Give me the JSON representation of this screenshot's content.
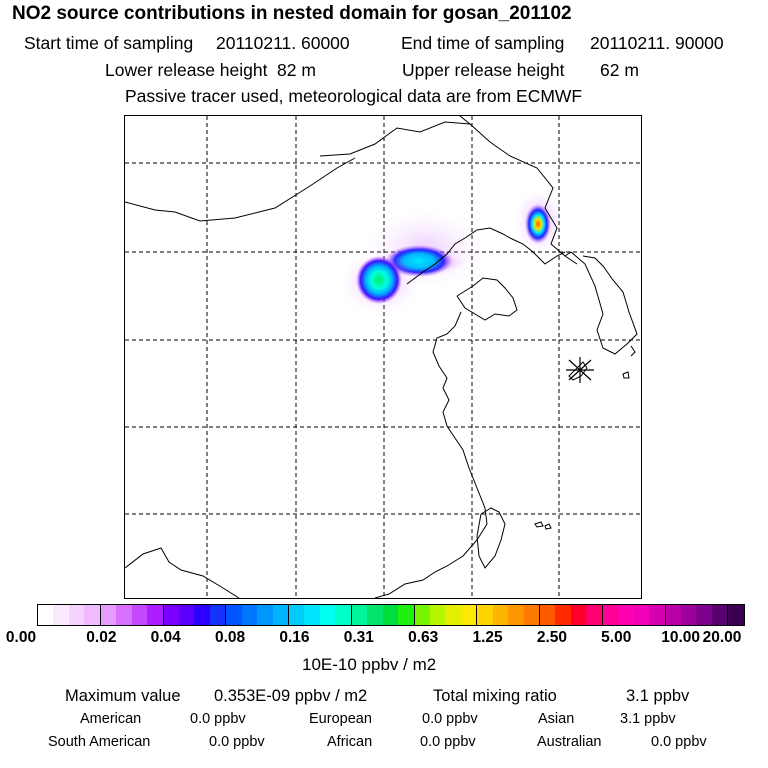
{
  "header": {
    "title": "NO2 source contributions in nested domain for gosan_201102",
    "start_label": "Start time of sampling",
    "start_value": "20110211. 60000",
    "end_label": "End time of sampling",
    "end_value": "20110211. 90000",
    "lower_label": "Lower release height",
    "lower_value": "82 m",
    "upper_label": "Upper release height",
    "upper_value": "62 m",
    "note": "Passive tracer used, meteorological data are from ECMWF"
  },
  "map": {
    "receptor_marker": "asterisk-receptor-icon",
    "colors": {
      "coast": "#000000",
      "grid": "#000000"
    }
  },
  "colorbar": {
    "ticks": [
      "0.00",
      "0.02",
      "0.04",
      "0.08",
      "0.16",
      "0.31",
      "0.63",
      "1.25",
      "2.50",
      "5.00",
      "10.00",
      "20.00"
    ],
    "colors": [
      "#ffffff",
      "#fbe9ff",
      "#f6d3ff",
      "#efbaff",
      "#e69bff",
      "#d870ff",
      "#c548ff",
      "#aa1eff",
      "#7c00ff",
      "#5a00ff",
      "#2b00ff",
      "#1433ff",
      "#0055ff",
      "#0077ff",
      "#0096ff",
      "#00b4ff",
      "#00ccff",
      "#00e4ff",
      "#00ffee",
      "#00ffc8",
      "#00f59a",
      "#00e56a",
      "#00dd3c",
      "#20f010",
      "#77f500",
      "#b8f500",
      "#e2ef00",
      "#ffe800",
      "#ffd200",
      "#ffb400",
      "#ff9800",
      "#ff7a00",
      "#ff5a00",
      "#ff2a00",
      "#ff0028",
      "#ff0070",
      "#ff0095",
      "#ff00b0",
      "#f000b8",
      "#d600b0",
      "#bb00a8",
      "#9e009c",
      "#7c008a",
      "#5a006e",
      "#3c0050"
    ],
    "unit": "10E-10 ppbv / m2"
  },
  "footer": {
    "max_label": "Maximum value",
    "max_value": "0.353E-09 ppbv / m2",
    "total_label": "Total mixing ratio",
    "total_value": "3.1 ppbv",
    "sources": [
      {
        "name": "American",
        "value": "0.0 ppbv"
      },
      {
        "name": "European",
        "value": "0.0 ppbv"
      },
      {
        "name": "Asian",
        "value": "3.1 ppbv"
      },
      {
        "name": "South American",
        "value": "0.0 ppbv"
      },
      {
        "name": "African",
        "value": "0.0 ppbv"
      },
      {
        "name": "Australian",
        "value": "0.0 ppbv"
      }
    ]
  }
}
